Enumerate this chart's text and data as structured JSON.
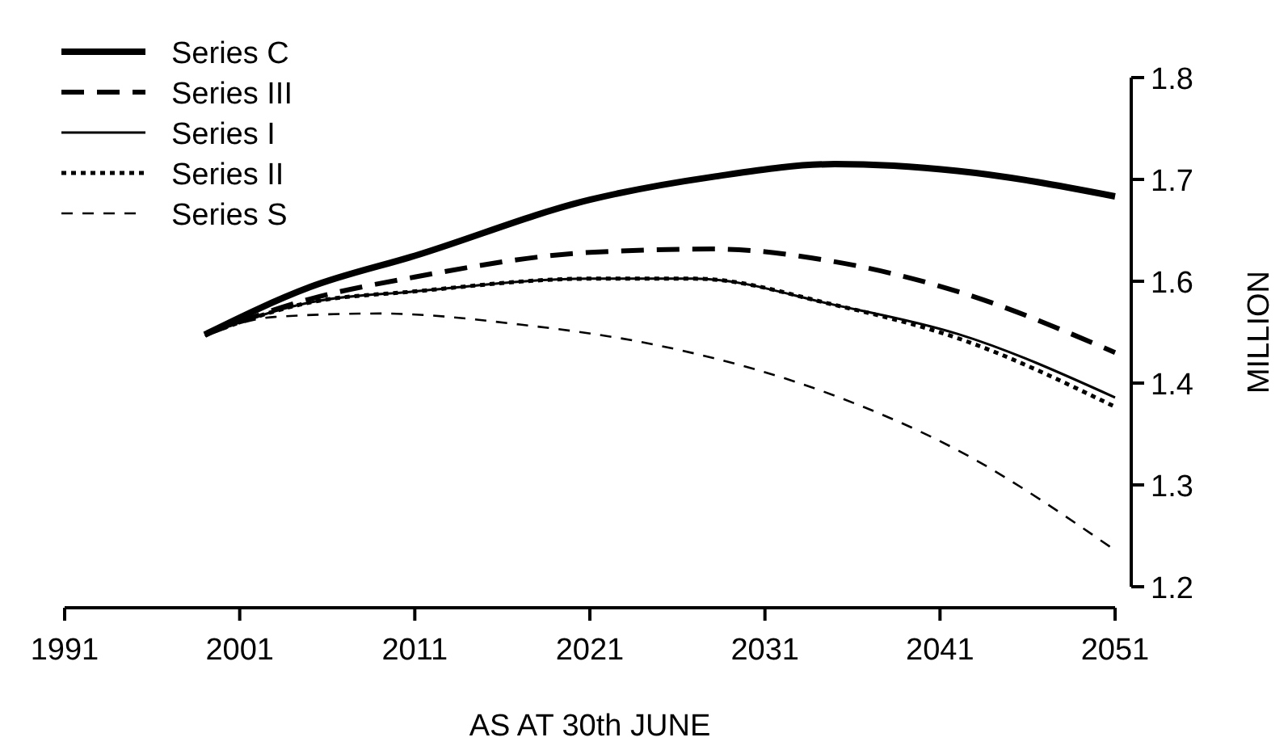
{
  "chart_data": {
    "type": "line",
    "xlabel": "AS AT 30th JUNE",
    "ylabel": "MILLION",
    "xlim": [
      1991,
      2051
    ],
    "xticks": [
      1991,
      2001,
      2011,
      2021,
      2031,
      2041,
      2051
    ],
    "ylim": [
      1.2,
      1.8
    ],
    "yticks": [
      {
        "value": 1.2,
        "label": "1.2"
      },
      {
        "value": 1.32,
        "label": "1.3"
      },
      {
        "value": 1.44,
        "label": "1.4"
      },
      {
        "value": 1.56,
        "label": "1.6"
      },
      {
        "value": 1.68,
        "label": "1.7"
      },
      {
        "value": 1.8,
        "label": "1.8"
      }
    ],
    "legend": "top left",
    "grid": false,
    "series": [
      {
        "name": "Series C",
        "color": "#000000",
        "line_style": "solid",
        "x": [
          1999,
          2005,
          2011,
          2021,
          2028,
          2035,
          2042,
          2051
        ],
        "values": [
          1.497,
          1.553,
          1.59,
          1.656,
          1.683,
          1.698,
          1.69,
          1.66
        ]
      },
      {
        "name": "Series III",
        "color": "#000000",
        "line_style": "dashed",
        "x": [
          1999,
          2005,
          2011,
          2021,
          2028,
          2035,
          2042,
          2051
        ],
        "values": [
          1.497,
          1.539,
          1.565,
          1.594,
          1.598,
          1.583,
          1.548,
          1.476
        ]
      },
      {
        "name": "Series I",
        "color": "#000000",
        "line_style": "solid",
        "x": [
          1999,
          2005,
          2011,
          2021,
          2027,
          2035,
          2042,
          2051
        ],
        "values": [
          1.497,
          1.535,
          1.548,
          1.563,
          1.563,
          1.532,
          1.498,
          1.423
        ]
      },
      {
        "name": "Series II",
        "color": "#000000",
        "line_style": "dotted",
        "x": [
          1999,
          2005,
          2011,
          2021,
          2027,
          2035,
          2042,
          2051
        ],
        "values": [
          1.497,
          1.535,
          1.548,
          1.563,
          1.563,
          1.532,
          1.493,
          1.412
        ]
      },
      {
        "name": "Series S",
        "color": "#000000",
        "line_style": "dashed",
        "x": [
          1999,
          2003,
          2009,
          2017,
          2025,
          2035,
          2042,
          2051
        ],
        "values": [
          1.497,
          1.518,
          1.522,
          1.509,
          1.484,
          1.425,
          1.361,
          1.243
        ]
      }
    ]
  }
}
